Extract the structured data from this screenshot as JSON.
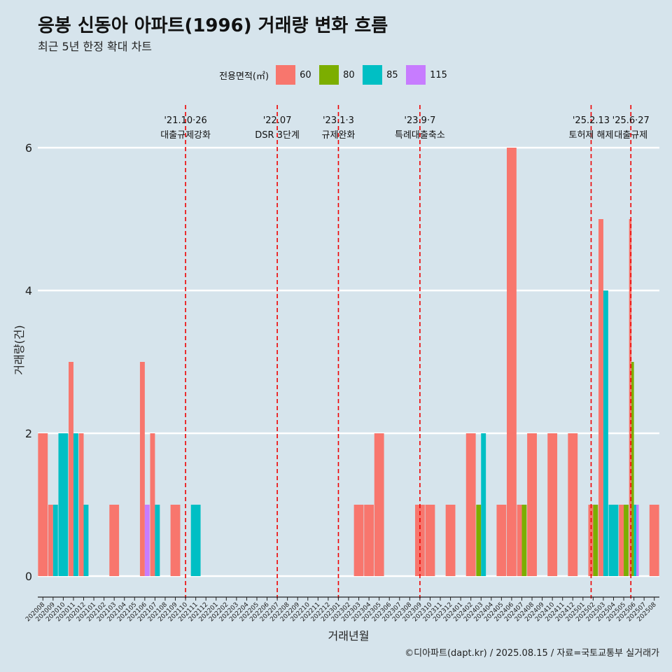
{
  "header": {
    "title": "응봉 신동아 아파트(1996) 거래량 변화 흐름",
    "subtitle": "최근 5년 한정 확대 차트"
  },
  "legend": {
    "title": "전용면적(㎡)",
    "items": [
      {
        "label": "60",
        "color": "#F8766D"
      },
      {
        "label": "80",
        "color": "#7CAE00"
      },
      {
        "label": "85",
        "color": "#00BFC4"
      },
      {
        "label": "115",
        "color": "#C77CFF"
      }
    ]
  },
  "caption": "©디아파트(dapt.kr) / 2025.08.15 / 자료=국토교통부 실거래가",
  "chart_data": {
    "type": "bar",
    "xlabel": "거래년월",
    "ylabel": "거래량(건)",
    "ylim": [
      0,
      6.5
    ],
    "yticks": [
      0,
      2,
      4,
      6
    ],
    "grid": true,
    "categories": [
      "202008",
      "202009",
      "202010",
      "202011",
      "202012",
      "202101",
      "202102",
      "202103",
      "202104",
      "202105",
      "202106",
      "202107",
      "202108",
      "202109",
      "202110",
      "202111",
      "202112",
      "202201",
      "202202",
      "202203",
      "202204",
      "202205",
      "202206",
      "202207",
      "202208",
      "202209",
      "202210",
      "202211",
      "202212",
      "202301",
      "202302",
      "202303",
      "202304",
      "202305",
      "202306",
      "202307",
      "202308",
      "202309",
      "202310",
      "202311",
      "202312",
      "202401",
      "202402",
      "202403",
      "202404",
      "202405",
      "202406",
      "202407",
      "202408",
      "202409",
      "202410",
      "202411",
      "202412",
      "202501",
      "202502",
      "202503",
      "202504",
      "202505",
      "202506",
      "202507",
      "202508"
    ],
    "series": [
      {
        "name": "60",
        "color": "#F8766D",
        "values": [
          2,
          1,
          0,
          3,
          2,
          0,
          0,
          1,
          0,
          0,
          3,
          2,
          0,
          1,
          0,
          0,
          0,
          0,
          0,
          0,
          0,
          0,
          0,
          0,
          0,
          0,
          0,
          0,
          0,
          0,
          0,
          1,
          1,
          2,
          0,
          0,
          0,
          1,
          1,
          0,
          1,
          0,
          2,
          0,
          0,
          1,
          6,
          1,
          2,
          0,
          2,
          0,
          2,
          0,
          1,
          5,
          0,
          1,
          5,
          0,
          1
        ]
      },
      {
        "name": "80",
        "color": "#7CAE00",
        "values": [
          0,
          0,
          0,
          0,
          0,
          0,
          0,
          0,
          0,
          0,
          0,
          0,
          0,
          0,
          0,
          0,
          0,
          0,
          0,
          0,
          0,
          0,
          0,
          0,
          0,
          0,
          0,
          0,
          0,
          0,
          0,
          0,
          0,
          0,
          0,
          0,
          0,
          0,
          0,
          0,
          0,
          0,
          0,
          1,
          0,
          0,
          0,
          1,
          0,
          0,
          0,
          0,
          0,
          0,
          1,
          0,
          0,
          1,
          3,
          0,
          0
        ]
      },
      {
        "name": "85",
        "color": "#00BFC4",
        "values": [
          0,
          1,
          2,
          2,
          1,
          0,
          0,
          0,
          0,
          0,
          0,
          1,
          0,
          0,
          0,
          1,
          0,
          0,
          0,
          0,
          0,
          0,
          0,
          0,
          0,
          0,
          0,
          0,
          0,
          0,
          0,
          0,
          0,
          0,
          0,
          0,
          0,
          0,
          0,
          0,
          0,
          0,
          0,
          2,
          0,
          0,
          0,
          0,
          0,
          0,
          0,
          0,
          0,
          0,
          0,
          4,
          1,
          0,
          1,
          0,
          0
        ]
      },
      {
        "name": "115",
        "color": "#C77CFF",
        "values": [
          0,
          0,
          0,
          0,
          0,
          0,
          0,
          0,
          0,
          0,
          1,
          0,
          0,
          0,
          0,
          0,
          0,
          0,
          0,
          0,
          0,
          0,
          0,
          0,
          0,
          0,
          0,
          0,
          0,
          0,
          0,
          0,
          0,
          0,
          0,
          0,
          0,
          0,
          0,
          0,
          0,
          0,
          0,
          0,
          0,
          0,
          0,
          0,
          0,
          0,
          0,
          0,
          0,
          0,
          0,
          0,
          0,
          0,
          1,
          0,
          0
        ]
      }
    ],
    "annotations": [
      {
        "x": 14.5,
        "date": "'21.10·26",
        "text": "대출규제강화"
      },
      {
        "x": 23.5,
        "date": "'22.07",
        "text": "DSR 3단계"
      },
      {
        "x": 29.5,
        "date": "'23.1·3",
        "text": "규제완화"
      },
      {
        "x": 37.5,
        "date": "'23.9·7",
        "text": "특례대출축소"
      },
      {
        "x": 54.3,
        "date": "'25.2.13",
        "text": "토허제 해제"
      },
      {
        "x": 58.2,
        "date": "'25.6·27",
        "text": "대출규제"
      }
    ]
  }
}
